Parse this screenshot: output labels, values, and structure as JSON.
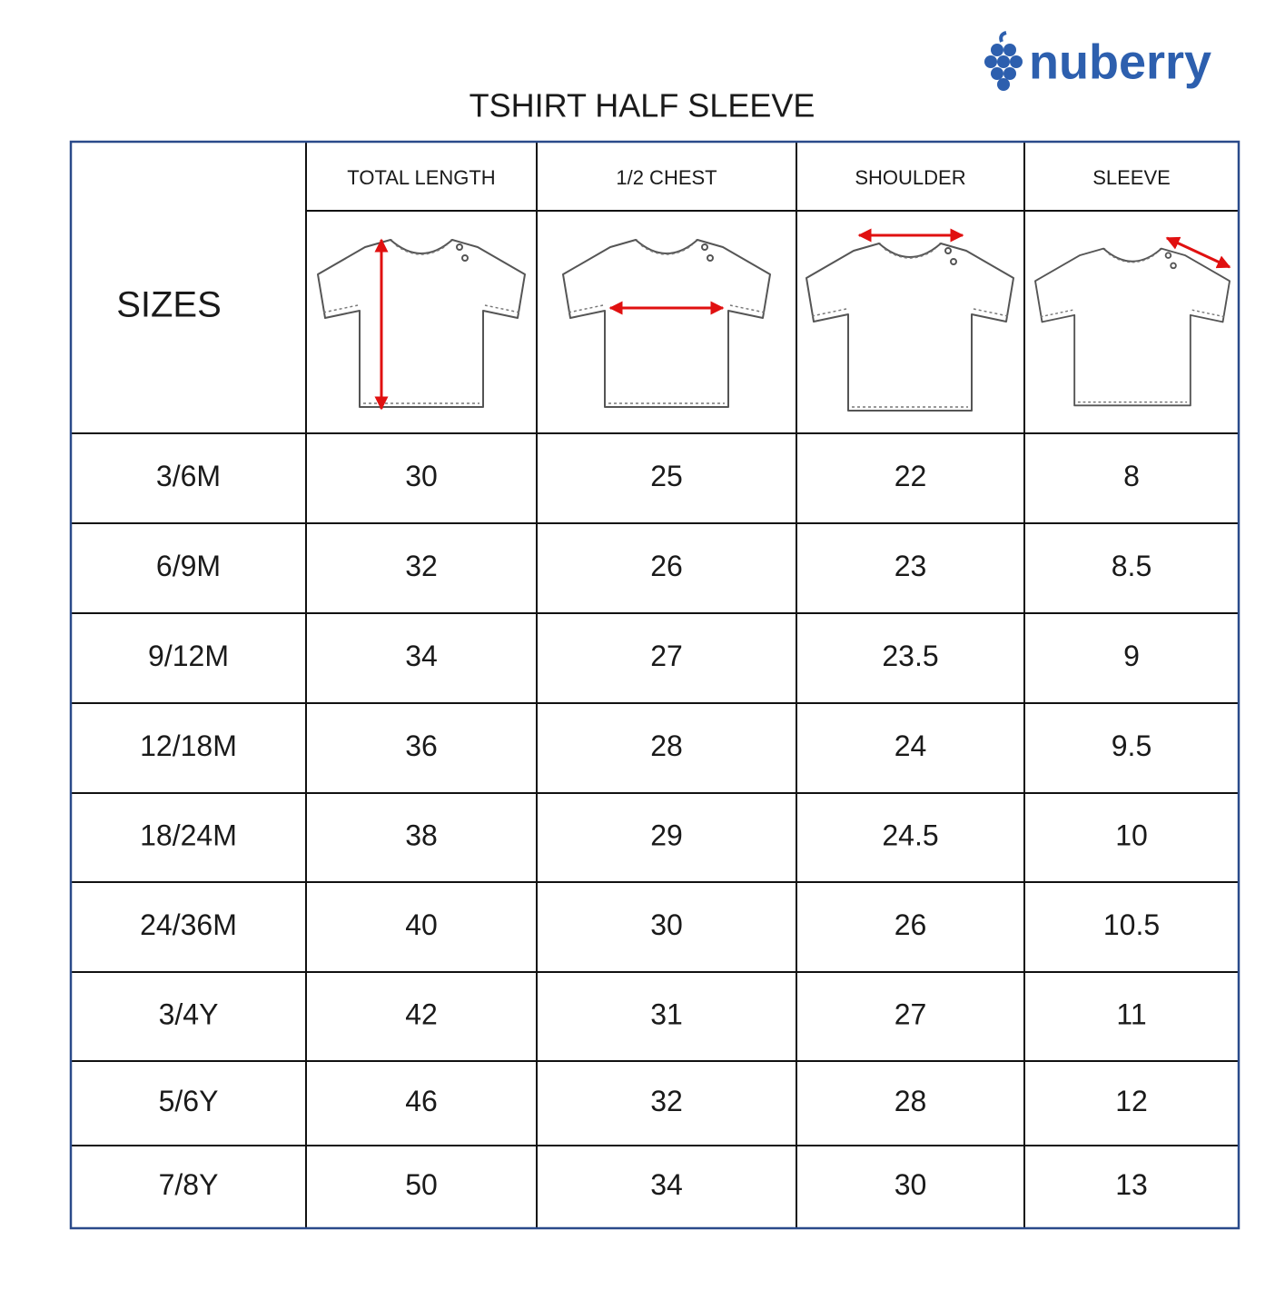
{
  "brand": "nuberry",
  "title": "TSHIRT HALF SLEEVE",
  "table": {
    "corner": "SIZES",
    "columns": [
      "TOTAL LENGTH",
      "1/2 CHEST",
      "SHOULDER",
      "SLEEVE"
    ],
    "rows": [
      [
        "3/6M",
        30,
        25,
        22,
        8
      ],
      [
        "6/9M",
        32,
        26,
        23,
        8.5
      ],
      [
        "9/12M",
        34,
        27,
        23.5,
        9
      ],
      [
        "12/18M",
        36,
        28,
        24,
        9.5
      ],
      [
        "18/24M",
        38,
        29,
        24.5,
        10
      ],
      [
        "24/36M",
        40,
        30,
        26,
        10.5
      ],
      [
        "3/4Y",
        42,
        31,
        27,
        11
      ],
      [
        "5/6Y",
        46,
        32,
        28,
        12
      ],
      [
        "7/8Y",
        50,
        34,
        30,
        13
      ]
    ]
  }
}
